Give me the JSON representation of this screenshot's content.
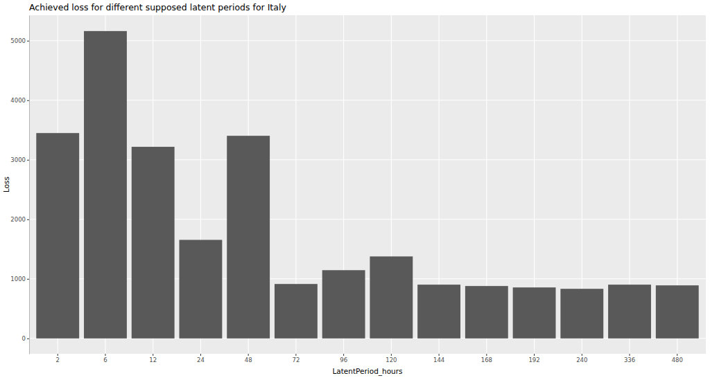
{
  "chart_data": {
    "type": "bar",
    "title": "Achieved loss for different supposed latent periods for Italy",
    "x_label": "LatentPeriod_hours",
    "y_label": "Loss",
    "categories": [
      "2",
      "6",
      "12",
      "24",
      "48",
      "72",
      "96",
      "120",
      "144",
      "168",
      "192",
      "240",
      "336",
      "480"
    ],
    "values": [
      3449,
      5162,
      3218,
      1655,
      3403,
      914,
      1146,
      1377,
      903,
      880,
      856,
      833,
      903,
      891
    ],
    "color": "#595959",
    "ylim": [
      -258,
      5428
    ],
    "yticks": [
      0,
      1000,
      2000,
      3000,
      4000,
      5000
    ],
    "grid": true
  }
}
